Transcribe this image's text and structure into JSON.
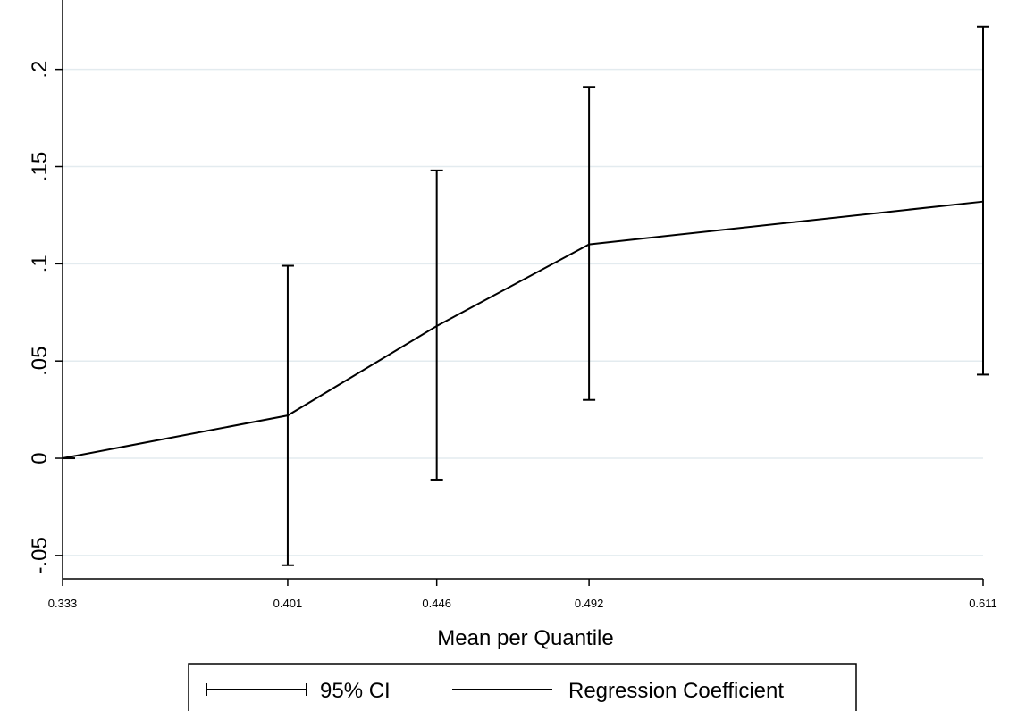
{
  "chart_data": {
    "type": "line",
    "title": "",
    "xlabel": "Mean per Quantile",
    "ylabel": "",
    "x": [
      0.333,
      0.401,
      0.446,
      0.492,
      0.611
    ],
    "x_tick_labels": [
      "0.333",
      "0.401",
      "0.446",
      "0.492",
      "0.611"
    ],
    "y_ticks": [
      -0.05,
      0,
      0.05,
      0.1,
      0.15,
      0.2
    ],
    "y_tick_labels": [
      "-.05",
      "0",
      ".05",
      ".1",
      ".15",
      ".2"
    ],
    "ylim": [
      -0.062,
      0.232
    ],
    "grid": true,
    "series": [
      {
        "name": "Regression Coefficient",
        "values": [
          0,
          0.022,
          0.068,
          0.11,
          0.132
        ],
        "color": "#000000"
      }
    ],
    "error_bars": {
      "name": "95% CI",
      "lower": [
        null,
        -0.055,
        -0.011,
        0.03,
        0.043
      ],
      "upper": [
        null,
        0.099,
        0.148,
        0.191,
        0.222
      ]
    },
    "legend": {
      "position": "bottom",
      "entries": [
        "95% CI",
        "Regression Coefficient"
      ]
    },
    "colors": {
      "line": "#000000",
      "grid": "#e3ebef",
      "background": "#ffffff"
    }
  }
}
